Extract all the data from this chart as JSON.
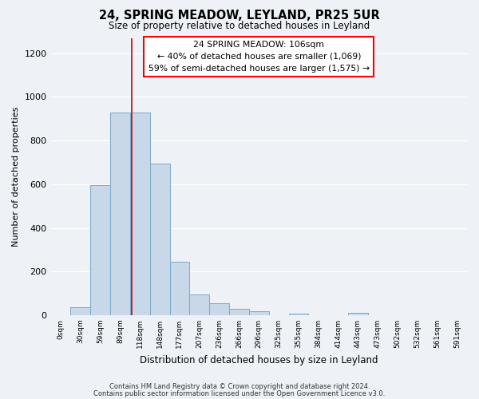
{
  "title": "24, SPRING MEADOW, LEYLAND, PR25 5UR",
  "subtitle": "Size of property relative to detached houses in Leyland",
  "xlabel": "Distribution of detached houses by size in Leyland",
  "ylabel": "Number of detached properties",
  "bar_color": "#c8d8e8",
  "bar_edge_color": "#7aaac8",
  "background_color": "#eef2f7",
  "grid_color": "#ffffff",
  "bin_labels": [
    "0sqm",
    "30sqm",
    "59sqm",
    "89sqm",
    "118sqm",
    "148sqm",
    "177sqm",
    "207sqm",
    "236sqm",
    "266sqm",
    "296sqm",
    "325sqm",
    "355sqm",
    "384sqm",
    "414sqm",
    "443sqm",
    "473sqm",
    "502sqm",
    "532sqm",
    "561sqm",
    "591sqm"
  ],
  "bar_heights": [
    0,
    38,
    595,
    930,
    928,
    695,
    243,
    96,
    55,
    30,
    18,
    0,
    8,
    0,
    0,
    12,
    0,
    0,
    0,
    0,
    0
  ],
  "ylim": [
    0,
    1270
  ],
  "yticks": [
    0,
    200,
    400,
    600,
    800,
    1000,
    1200
  ],
  "vline_color": "#cc0000",
  "annotation_title": "24 SPRING MEADOW: 106sqm",
  "annotation_line1": "← 40% of detached houses are smaller (1,069)",
  "annotation_line2": "59% of semi-detached houses are larger (1,575) →",
  "footnote1": "Contains HM Land Registry data © Crown copyright and database right 2024.",
  "footnote2": "Contains public sector information licensed under the Open Government Licence v3.0."
}
